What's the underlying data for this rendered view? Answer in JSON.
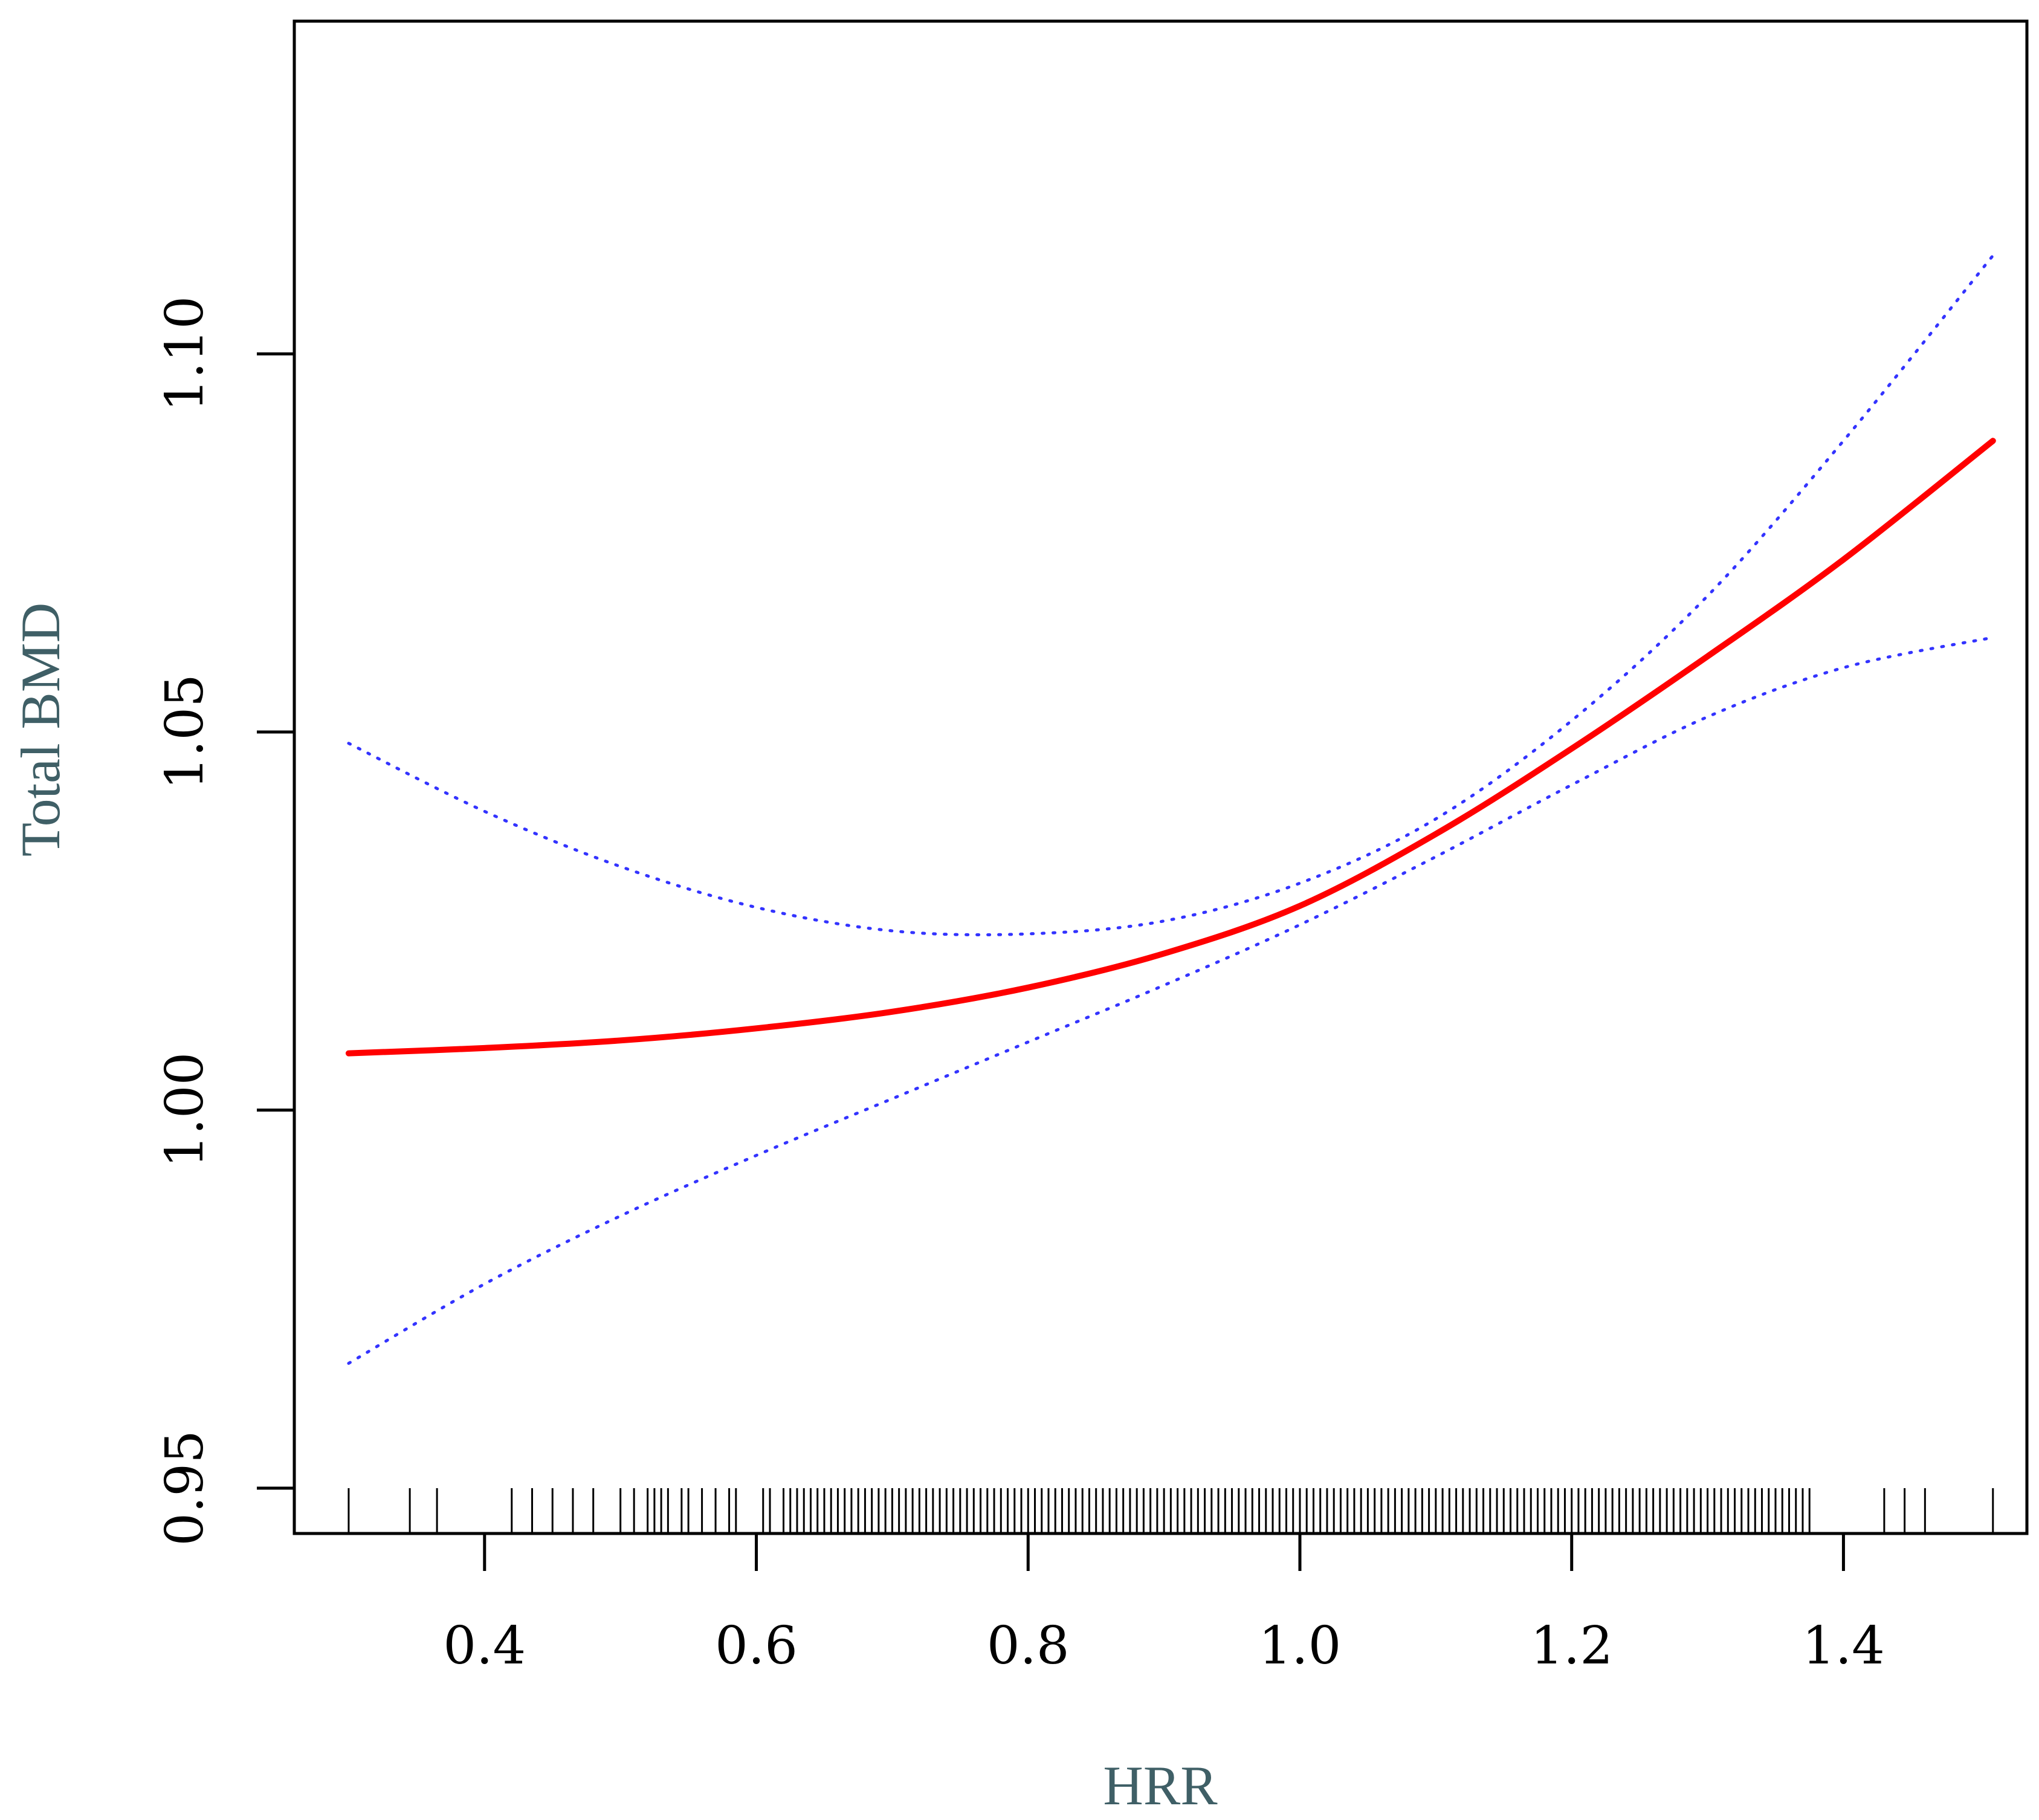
{
  "chart_data": {
    "type": "line",
    "title": "",
    "xlabel": "HRR",
    "ylabel": "Total BMD",
    "xlim": [
      0.26,
      1.535
    ],
    "ylim": [
      0.944,
      1.144
    ],
    "x_ticks": [
      {
        "value": 0.4,
        "label": "0.4"
      },
      {
        "value": 0.6,
        "label": "0.6"
      },
      {
        "value": 0.8,
        "label": "0.8"
      },
      {
        "value": 1.0,
        "label": "1.0"
      },
      {
        "value": 1.2,
        "label": "1.2"
      },
      {
        "value": 1.4,
        "label": "1.4"
      }
    ],
    "y_ticks": [
      {
        "value": 0.95,
        "label": "0.95"
      },
      {
        "value": 1.0,
        "label": "1.00"
      },
      {
        "value": 1.05,
        "label": "1.05"
      },
      {
        "value": 1.1,
        "label": "1.10"
      }
    ],
    "grid": false,
    "legend": "none",
    "series": [
      {
        "role": "fit",
        "color": "#ff0000",
        "style": "solid",
        "x": [
          0.3,
          0.4,
          0.5,
          0.6,
          0.7,
          0.8,
          0.9,
          1.0,
          1.1,
          1.2,
          1.3,
          1.4,
          1.51
        ],
        "y": [
          1.0075,
          1.0082,
          1.0092,
          1.0108,
          1.013,
          1.0162,
          1.0207,
          1.027,
          1.0365,
          1.0478,
          1.06,
          1.0728,
          1.0885
        ]
      },
      {
        "role": "upper-ci",
        "color": "#3333ff",
        "style": "dotted",
        "x": [
          0.3,
          0.4,
          0.5,
          0.6,
          0.7,
          0.8,
          0.9,
          1.0,
          1.1,
          1.2,
          1.3,
          1.4,
          1.51
        ],
        "y": [
          1.0485,
          1.0395,
          1.0322,
          1.0268,
          1.0237,
          1.0233,
          1.025,
          1.03,
          1.0385,
          1.0515,
          1.068,
          1.0885,
          1.113
        ]
      },
      {
        "role": "lower-ci",
        "color": "#3333ff",
        "style": "dotted",
        "x": [
          0.3,
          0.4,
          0.5,
          0.6,
          0.7,
          0.8,
          0.9,
          1.0,
          1.1,
          1.2,
          1.3,
          1.4,
          1.51
        ],
        "y": [
          0.9665,
          0.977,
          0.986,
          0.994,
          1.0015,
          1.009,
          1.0165,
          1.0245,
          1.0335,
          1.043,
          1.052,
          1.0585,
          1.0625
        ]
      }
    ],
    "rug": [
      0.3,
      0.345,
      0.365,
      0.42,
      0.435,
      0.45,
      0.465,
      0.48,
      0.5,
      0.51,
      0.52,
      0.525,
      0.53,
      0.535,
      0.545,
      0.55,
      0.56,
      0.57,
      0.58,
      0.585,
      0.605,
      0.61,
      0.62,
      0.625,
      0.63,
      0.635,
      0.64,
      0.645,
      0.65,
      0.655,
      0.66,
      0.665,
      0.67,
      0.675,
      0.68,
      0.685,
      0.69,
      0.695,
      0.7,
      0.705,
      0.71,
      0.715,
      0.72,
      0.725,
      0.73,
      0.735,
      0.74,
      0.745,
      0.75,
      0.755,
      0.76,
      0.765,
      0.77,
      0.775,
      0.78,
      0.785,
      0.79,
      0.795,
      0.8,
      0.805,
      0.81,
      0.815,
      0.82,
      0.825,
      0.83,
      0.835,
      0.84,
      0.845,
      0.85,
      0.855,
      0.86,
      0.865,
      0.87,
      0.875,
      0.88,
      0.885,
      0.89,
      0.895,
      0.9,
      0.905,
      0.91,
      0.915,
      0.92,
      0.925,
      0.93,
      0.935,
      0.94,
      0.945,
      0.95,
      0.955,
      0.96,
      0.965,
      0.97,
      0.975,
      0.98,
      0.985,
      0.99,
      0.995,
      1.0,
      1.005,
      1.01,
      1.015,
      1.02,
      1.025,
      1.03,
      1.035,
      1.04,
      1.045,
      1.05,
      1.055,
      1.06,
      1.065,
      1.07,
      1.075,
      1.08,
      1.085,
      1.09,
      1.095,
      1.1,
      1.105,
      1.11,
      1.115,
      1.12,
      1.125,
      1.13,
      1.135,
      1.14,
      1.145,
      1.15,
      1.155,
      1.16,
      1.165,
      1.17,
      1.175,
      1.18,
      1.185,
      1.19,
      1.195,
      1.2,
      1.205,
      1.21,
      1.215,
      1.22,
      1.225,
      1.23,
      1.235,
      1.24,
      1.245,
      1.25,
      1.255,
      1.26,
      1.265,
      1.27,
      1.275,
      1.28,
      1.285,
      1.29,
      1.295,
      1.3,
      1.305,
      1.31,
      1.315,
      1.32,
      1.325,
      1.33,
      1.335,
      1.34,
      1.345,
      1.35,
      1.355,
      1.36,
      1.365,
      1.37,
      1.375,
      1.43,
      1.445,
      1.46,
      1.51
    ]
  }
}
